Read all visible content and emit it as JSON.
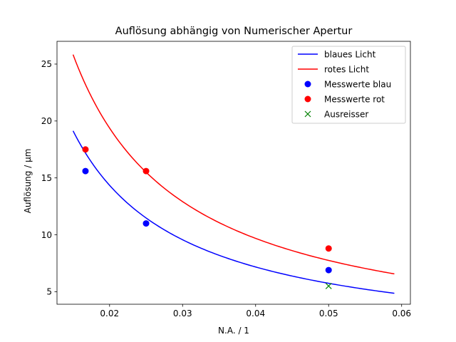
{
  "chart_data": {
    "type": "line",
    "title": "Auflösung abhängig von Numerischer Apertur",
    "xlabel": "N.A. / 1",
    "ylabel": "Auflösung / µm",
    "xlim": [
      0.0128,
      0.0612
    ],
    "ylim": [
      3.9,
      27.0
    ],
    "xticks": [
      0.02,
      0.03,
      0.04,
      0.05,
      0.06
    ],
    "xtick_labels": [
      "0.02",
      "0.03",
      "0.04",
      "0.05",
      "0.06"
    ],
    "yticks": [
      5,
      10,
      15,
      20,
      25
    ],
    "ytick_labels": [
      "5",
      "10",
      "15",
      "20",
      "25"
    ],
    "grid": false,
    "legend_position": "top-right",
    "lines": [
      {
        "name": "blaues Licht",
        "color": "#0000ff",
        "k": 0.287,
        "x_range": [
          0.015,
          0.059
        ]
      },
      {
        "name": "rotes Licht",
        "color": "#ff0000",
        "k": 0.3875,
        "x_range": [
          0.015,
          0.059
        ]
      }
    ],
    "scatter": [
      {
        "name": "Messwerte blau",
        "color": "#0000ff",
        "marker": "circle",
        "x": [
          0.0167,
          0.025,
          0.05
        ],
        "y": [
          15.6,
          11.0,
          6.9
        ]
      },
      {
        "name": "Messwerte rot",
        "color": "#ff0000",
        "marker": "circle",
        "x": [
          0.0167,
          0.025,
          0.05
        ],
        "y": [
          17.5,
          15.6,
          8.8
        ]
      },
      {
        "name": "Ausreisser",
        "color": "#008000",
        "marker": "x",
        "x": [
          0.05
        ],
        "y": [
          5.5
        ]
      }
    ],
    "legend": [
      "blaues Licht",
      "rotes Licht",
      "Messwerte blau",
      "Messwerte rot",
      "Ausreisser"
    ]
  }
}
